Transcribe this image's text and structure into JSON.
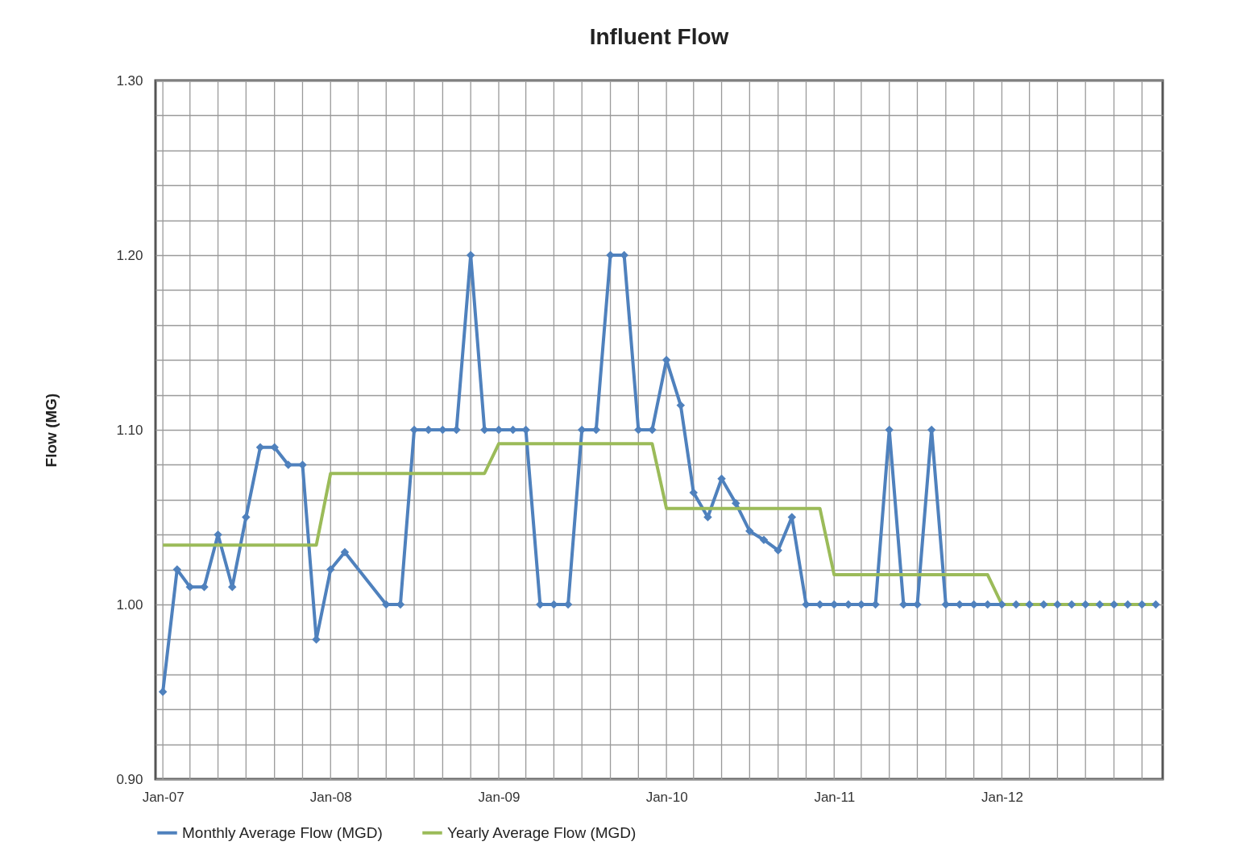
{
  "chart_data": {
    "type": "line",
    "title": "Influent Flow",
    "ylabel": "Flow (MG)",
    "xlim": [
      "2006-12-16",
      "2012-12-16"
    ],
    "xticks": [
      {
        "value": "2007-01",
        "label": "Jan-07"
      },
      {
        "value": "2007-03",
        "label": null
      },
      {
        "value": "2007-05",
        "label": null
      },
      {
        "value": "2007-07",
        "label": null
      },
      {
        "value": "2007-09",
        "label": null
      },
      {
        "value": "2007-11",
        "label": null
      },
      {
        "value": "2008-01",
        "label": "Jan-08"
      },
      {
        "value": "2008-03",
        "label": null
      },
      {
        "value": "2008-05",
        "label": null
      },
      {
        "value": "2008-07",
        "label": null
      },
      {
        "value": "2008-09",
        "label": null
      },
      {
        "value": "2008-11",
        "label": null
      },
      {
        "value": "2009-01",
        "label": "Jan-09"
      },
      {
        "value": "2009-03",
        "label": null
      },
      {
        "value": "2009-05",
        "label": null
      },
      {
        "value": "2009-07",
        "label": null
      },
      {
        "value": "2009-09",
        "label": null
      },
      {
        "value": "2009-11",
        "label": null
      },
      {
        "value": "2010-01",
        "label": "Jan-10"
      },
      {
        "value": "2010-03",
        "label": null
      },
      {
        "value": "2010-05",
        "label": null
      },
      {
        "value": "2010-07",
        "label": null
      },
      {
        "value": "2010-09",
        "label": null
      },
      {
        "value": "2010-11",
        "label": null
      },
      {
        "value": "2011-01",
        "label": "Jan-11"
      },
      {
        "value": "2011-03",
        "label": null
      },
      {
        "value": "2011-05",
        "label": null
      },
      {
        "value": "2011-07",
        "label": null
      },
      {
        "value": "2011-09",
        "label": null
      },
      {
        "value": "2011-11",
        "label": null
      },
      {
        "value": "2012-01",
        "label": "Jan-12"
      },
      {
        "value": "2012-03",
        "label": null
      },
      {
        "value": "2012-05",
        "label": null
      },
      {
        "value": "2012-07",
        "label": null
      },
      {
        "value": "2012-09",
        "label": null
      },
      {
        "value": "2012-11",
        "label": null
      }
    ],
    "ylim": [
      0.9,
      1.3
    ],
    "yticks": [
      {
        "value": 0.9,
        "label": "0.90"
      },
      {
        "value": 0.92,
        "label": null
      },
      {
        "value": 0.94,
        "label": null
      },
      {
        "value": 0.96,
        "label": null
      },
      {
        "value": 0.98,
        "label": null
      },
      {
        "value": 1.0,
        "label": "1.00"
      },
      {
        "value": 1.02,
        "label": null
      },
      {
        "value": 1.04,
        "label": null
      },
      {
        "value": 1.06,
        "label": null
      },
      {
        "value": 1.08,
        "label": null
      },
      {
        "value": 1.1,
        "label": "1.10"
      },
      {
        "value": 1.12,
        "label": null
      },
      {
        "value": 1.14,
        "label": null
      },
      {
        "value": 1.16,
        "label": null
      },
      {
        "value": 1.18,
        "label": null
      },
      {
        "value": 1.2,
        "label": "1.20"
      },
      {
        "value": 1.22,
        "label": null
      },
      {
        "value": 1.24,
        "label": null
      },
      {
        "value": 1.26,
        "label": null
      },
      {
        "value": 1.28,
        "label": null
      },
      {
        "value": 1.3,
        "label": "1.30"
      }
    ],
    "grid": true,
    "legend": "bottom",
    "line_style": "solid",
    "series": [
      {
        "name": "Monthly Average Flow (MGD)",
        "color": "#4f81bd",
        "marker": "diamond",
        "x": [
          "2007-01",
          "2007-02",
          "2007-03",
          "2007-04",
          "2007-05",
          "2007-06",
          "2007-07",
          "2007-08",
          "2007-09",
          "2007-10",
          "2007-11",
          "2007-12",
          "2008-01",
          "2008-02",
          "2008-05",
          "2008-06",
          "2008-07",
          "2008-08",
          "2008-09",
          "2008-10",
          "2008-11",
          "2008-12",
          "2009-01",
          "2009-02",
          "2009-03",
          "2009-04",
          "2009-05",
          "2009-06",
          "2009-07",
          "2009-08",
          "2009-09",
          "2009-10",
          "2009-11",
          "2009-12",
          "2010-01",
          "2010-02",
          "2010-03",
          "2010-04",
          "2010-05",
          "2010-06",
          "2010-07",
          "2010-08",
          "2010-09",
          "2010-10",
          "2010-11",
          "2010-12",
          "2011-01",
          "2011-02",
          "2011-03",
          "2011-04",
          "2011-05",
          "2011-06",
          "2011-07",
          "2011-08",
          "2011-09",
          "2011-10",
          "2011-11",
          "2011-12",
          "2012-01",
          "2012-02",
          "2012-03",
          "2012-04",
          "2012-05",
          "2012-06",
          "2012-07",
          "2012-08",
          "2012-09",
          "2012-10",
          "2012-11",
          "2012-12"
        ],
        "values": [
          0.95,
          1.02,
          1.01,
          1.01,
          1.04,
          1.01,
          1.05,
          1.09,
          1.09,
          1.08,
          1.08,
          0.98,
          1.02,
          1.03,
          1.0,
          1.0,
          1.1,
          1.1,
          1.1,
          1.1,
          1.2,
          1.1,
          1.1,
          1.1,
          1.1,
          1.0,
          1.0,
          1.0,
          1.1,
          1.1,
          1.2,
          1.2,
          1.1,
          1.1,
          1.14,
          1.114,
          1.064,
          1.05,
          1.072,
          1.058,
          1.042,
          1.037,
          1.031,
          1.05,
          1.0,
          1.0,
          1.0,
          1.0,
          1.0,
          1.0,
          1.1,
          1.0,
          1.0,
          1.1,
          1.0,
          1.0,
          1.0,
          1.0,
          1.0,
          1.0,
          1.0,
          1.0,
          1.0,
          1.0,
          1.0,
          1.0,
          1.0,
          1.0,
          1.0,
          1.0
        ]
      },
      {
        "name": "Yearly Average Flow (MGD)",
        "color": "#9bbb59",
        "marker": "none",
        "x": [
          "2007-01",
          "2007-02",
          "2007-03",
          "2007-04",
          "2007-05",
          "2007-06",
          "2007-07",
          "2007-08",
          "2007-09",
          "2007-10",
          "2007-11",
          "2007-12",
          "2008-01",
          "2008-02",
          "2008-03",
          "2008-04",
          "2008-05",
          "2008-06",
          "2008-07",
          "2008-08",
          "2008-09",
          "2008-10",
          "2008-11",
          "2008-12",
          "2009-01",
          "2009-02",
          "2009-03",
          "2009-04",
          "2009-05",
          "2009-06",
          "2009-07",
          "2009-08",
          "2009-09",
          "2009-10",
          "2009-11",
          "2009-12",
          "2010-01",
          "2010-02",
          "2010-03",
          "2010-04",
          "2010-05",
          "2010-06",
          "2010-07",
          "2010-08",
          "2010-09",
          "2010-10",
          "2010-11",
          "2010-12",
          "2011-01",
          "2011-02",
          "2011-03",
          "2011-04",
          "2011-05",
          "2011-06",
          "2011-07",
          "2011-08",
          "2011-09",
          "2011-10",
          "2011-11",
          "2011-12",
          "2012-01",
          "2012-02",
          "2012-03",
          "2012-04",
          "2012-05",
          "2012-06",
          "2012-07",
          "2012-08",
          "2012-09",
          "2012-10",
          "2012-11",
          "2012-12"
        ],
        "values": [
          1.034,
          1.034,
          1.034,
          1.034,
          1.034,
          1.034,
          1.034,
          1.034,
          1.034,
          1.034,
          1.034,
          1.034,
          1.075,
          1.075,
          1.075,
          1.075,
          1.075,
          1.075,
          1.075,
          1.075,
          1.075,
          1.075,
          1.075,
          1.075,
          1.092,
          1.092,
          1.092,
          1.092,
          1.092,
          1.092,
          1.092,
          1.092,
          1.092,
          1.092,
          1.092,
          1.092,
          1.055,
          1.055,
          1.055,
          1.055,
          1.055,
          1.055,
          1.055,
          1.055,
          1.055,
          1.055,
          1.055,
          1.055,
          1.017,
          1.017,
          1.017,
          1.017,
          1.017,
          1.017,
          1.017,
          1.017,
          1.017,
          1.017,
          1.017,
          1.017,
          1.0,
          1.0,
          1.0,
          1.0,
          1.0,
          1.0,
          1.0,
          1.0,
          1.0,
          1.0,
          1.0,
          1.0
        ]
      }
    ]
  }
}
